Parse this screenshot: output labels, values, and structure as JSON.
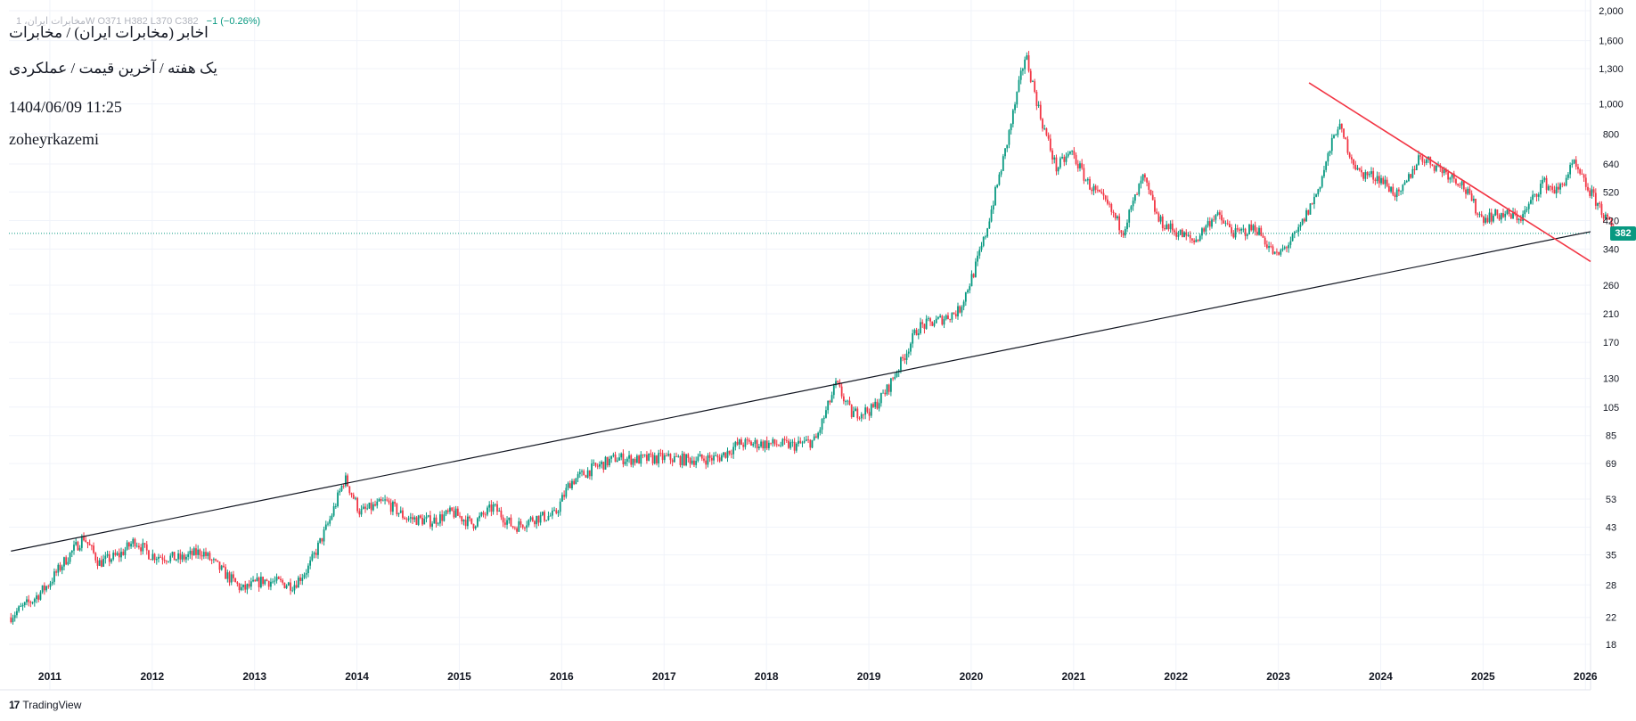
{
  "header": {
    "ohlc_text": "مخابرات ایران، 1W  O371  H382  L370  C382",
    "change_text": "−1 (−0.26%)",
    "lines": [
      "اخابر (مخابرات ایران) / مخابرات",
      "یک هفته / آخرین قیمت / عملکردی",
      "1404/06/09 11:25",
      "zoheyrkazemi"
    ]
  },
  "brand": {
    "logo": "17",
    "name": "TradingView"
  },
  "current_price_label": "382",
  "colors": {
    "up": "#089981",
    "down": "#f23645",
    "trendline_support": "#131722",
    "trendline_resistance": "#f23645",
    "grid": "#f0f3fa",
    "price_line": "#089981"
  },
  "chart_data": {
    "type": "candlestick",
    "interval": "1W",
    "scale": "log",
    "ylim": [
      15,
      2000
    ],
    "y_ticks": [
      2000,
      1600,
      1300,
      1000,
      800,
      640,
      520,
      420,
      340,
      260,
      210,
      170,
      130,
      105,
      85,
      69,
      53,
      43,
      35,
      28,
      22,
      18
    ],
    "y_tick_labels": [
      "2,000",
      "1,600",
      "1,300",
      "1,000",
      "800",
      "640",
      "520",
      "420",
      "340",
      "260",
      "210",
      "170",
      "130",
      "105",
      "85",
      "69",
      "53",
      "43",
      "35",
      "28",
      "22",
      "18"
    ],
    "x_ticks": [
      2011,
      2012,
      2013,
      2014,
      2015,
      2016,
      2017,
      2018,
      2019,
      2020,
      2021,
      2022,
      2023,
      2024,
      2025,
      2026
    ],
    "x_tick_labels": [
      "2011",
      "2012",
      "2013",
      "2014",
      "2015",
      "2016",
      "2017",
      "2018",
      "2019",
      "2020",
      "2021",
      "2022",
      "2023",
      "2024",
      "2025",
      "2026"
    ],
    "xlim": [
      2010.6,
      2026.05
    ],
    "last_close": 382,
    "price_path": [
      [
        2010.62,
        22
      ],
      [
        2010.85,
        25
      ],
      [
        2011.0,
        28
      ],
      [
        2011.15,
        33
      ],
      [
        2011.35,
        40
      ],
      [
        2011.5,
        33
      ],
      [
        2011.7,
        35
      ],
      [
        2011.85,
        39
      ],
      [
        2012.0,
        35
      ],
      [
        2012.3,
        34
      ],
      [
        2012.5,
        36
      ],
      [
        2012.75,
        30
      ],
      [
        2012.9,
        27
      ],
      [
        2013.1,
        29
      ],
      [
        2013.4,
        28
      ],
      [
        2013.55,
        32
      ],
      [
        2013.75,
        45
      ],
      [
        2013.9,
        62
      ],
      [
        2014.05,
        48
      ],
      [
        2014.3,
        52
      ],
      [
        2014.5,
        46
      ],
      [
        2014.75,
        45
      ],
      [
        2014.95,
        48
      ],
      [
        2015.15,
        44
      ],
      [
        2015.35,
        50
      ],
      [
        2015.55,
        43
      ],
      [
        2015.75,
        46
      ],
      [
        2015.95,
        47
      ],
      [
        2016.1,
        60
      ],
      [
        2016.3,
        66
      ],
      [
        2016.55,
        72
      ],
      [
        2016.75,
        71
      ],
      [
        2017.0,
        72
      ],
      [
        2017.25,
        71
      ],
      [
        2017.55,
        72
      ],
      [
        2017.75,
        80
      ],
      [
        2018.0,
        80
      ],
      [
        2018.3,
        79
      ],
      [
        2018.5,
        82
      ],
      [
        2018.7,
        125
      ],
      [
        2018.85,
        100
      ],
      [
        2019.05,
        103
      ],
      [
        2019.2,
        120
      ],
      [
        2019.35,
        150
      ],
      [
        2019.5,
        190
      ],
      [
        2019.7,
        200
      ],
      [
        2019.9,
        215
      ],
      [
        2020.05,
        290
      ],
      [
        2020.15,
        370
      ],
      [
        2020.35,
        700
      ],
      [
        2020.55,
        1450
      ],
      [
        2020.7,
        900
      ],
      [
        2020.85,
        620
      ],
      [
        2021.0,
        700
      ],
      [
        2021.15,
        560
      ],
      [
        2021.35,
        470
      ],
      [
        2021.5,
        390
      ],
      [
        2021.7,
        580
      ],
      [
        2021.85,
        420
      ],
      [
        2022.0,
        390
      ],
      [
        2022.2,
        360
      ],
      [
        2022.4,
        440
      ],
      [
        2022.6,
        380
      ],
      [
        2022.8,
        400
      ],
      [
        2023.0,
        320
      ],
      [
        2023.2,
        380
      ],
      [
        2023.4,
        520
      ],
      [
        2023.6,
        860
      ],
      [
        2023.8,
        600
      ],
      [
        2024.0,
        580
      ],
      [
        2024.2,
        500
      ],
      [
        2024.4,
        680
      ],
      [
        2024.6,
        620
      ],
      [
        2024.8,
        560
      ],
      [
        2025.0,
        430
      ],
      [
        2025.2,
        440
      ],
      [
        2025.4,
        430
      ],
      [
        2025.6,
        560
      ],
      [
        2025.75,
        520
      ],
      [
        2025.9,
        640
      ],
      [
        2026.0,
        560
      ],
      [
        2026.15,
        470
      ],
      [
        2026.3,
        382
      ]
    ],
    "trendlines": [
      {
        "name": "support",
        "from": [
          2010.62,
          36
        ],
        "to": [
          2026.05,
          387
        ]
      },
      {
        "name": "resistance",
        "from": [
          2023.3,
          1170
        ],
        "to": [
          2026.05,
          310
        ]
      }
    ]
  }
}
